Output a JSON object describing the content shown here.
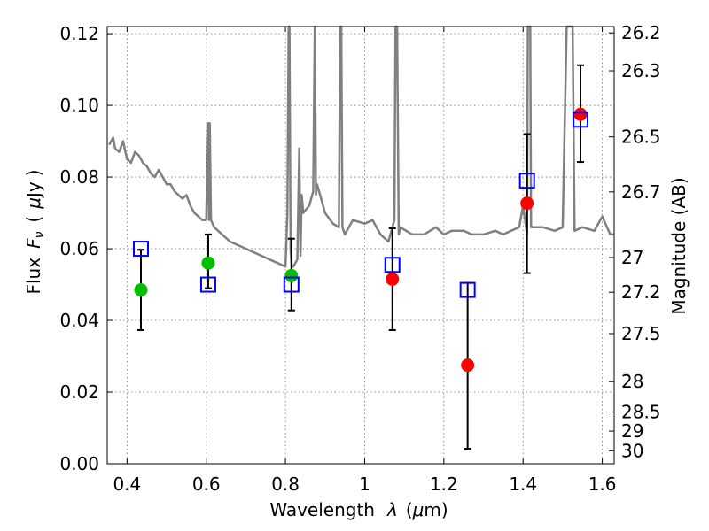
{
  "chart_data": {
    "type": "scatter",
    "xlabel": "Wavelength",
    "xlabel_symbol": "λ",
    "xlabel_unit_open": "(",
    "xlabel_unit_mu": "μ",
    "xlabel_unit_rest": "m)",
    "ylabel": "Flux",
    "ylabel_symbol": "F",
    "ylabel_sub": "ν",
    "ylabel_unit_open": "(",
    "ylabel_unit_mu": "μ",
    "ylabel_unit_rest": "Jy",
    "ylabel_unit_close": ")",
    "y2label": "Magnitude (AB)",
    "xlim": [
      0.35,
      1.63
    ],
    "ylim": [
      0.0,
      0.122
    ],
    "grid": true,
    "x_ticks": [
      {
        "value": 0.4,
        "label": "0.4"
      },
      {
        "value": 0.6,
        "label": "0.6"
      },
      {
        "value": 0.8,
        "label": "0.8"
      },
      {
        "value": 1.0,
        "label": "1"
      },
      {
        "value": 1.2,
        "label": "1.2"
      },
      {
        "value": 1.4,
        "label": "1.4"
      },
      {
        "value": 1.6,
        "label": "1.6"
      }
    ],
    "y_ticks": [
      {
        "value": 0.0,
        "label": "0.00"
      },
      {
        "value": 0.02,
        "label": "0.02"
      },
      {
        "value": 0.04,
        "label": "0.04"
      },
      {
        "value": 0.06,
        "label": "0.06"
      },
      {
        "value": 0.08,
        "label": "0.08"
      },
      {
        "value": 0.1,
        "label": "0.10"
      },
      {
        "value": 0.12,
        "label": "0.12"
      }
    ],
    "mag_ticks": [
      {
        "value": 26.2,
        "label": "26.2"
      },
      {
        "value": 26.3,
        "label": "26.3"
      },
      {
        "value": 26.5,
        "label": "26.5"
      },
      {
        "value": 26.7,
        "label": "26.7"
      },
      {
        "value": 27.0,
        "label": "27"
      },
      {
        "value": 27.2,
        "label": "27.2"
      },
      {
        "value": 27.5,
        "label": "27.5"
      },
      {
        "value": 28.0,
        "label": "28"
      },
      {
        "value": 28.5,
        "label": "28.5"
      },
      {
        "value": 29.0,
        "label": "29"
      },
      {
        "value": 30.0,
        "label": "30"
      }
    ],
    "colors": {
      "spectrum": "#808080",
      "green_points": "#00bf00",
      "red_points": "#ff0000",
      "model_squares": "#0000ff",
      "error_bars": "#000000"
    },
    "series": [
      {
        "role": "spectrum",
        "x": [
          0.355,
          0.365,
          0.37,
          0.38,
          0.39,
          0.4,
          0.41,
          0.42,
          0.43,
          0.44,
          0.45,
          0.46,
          0.47,
          0.48,
          0.49,
          0.5,
          0.51,
          0.52,
          0.53,
          0.54,
          0.55,
          0.56,
          0.57,
          0.58,
          0.59,
          0.6,
          0.605,
          0.607,
          0.609,
          0.612,
          0.62,
          0.64,
          0.66,
          0.68,
          0.7,
          0.72,
          0.74,
          0.76,
          0.78,
          0.8,
          0.805,
          0.808,
          0.81,
          0.813,
          0.816,
          0.82,
          0.83,
          0.835,
          0.838,
          0.841,
          0.845,
          0.86,
          0.87,
          0.874,
          0.877,
          0.88,
          0.9,
          0.92,
          0.935,
          0.938,
          0.941,
          0.944,
          0.95,
          0.97,
          1.0,
          1.02,
          1.04,
          1.06,
          1.075,
          1.078,
          1.082,
          1.086,
          1.09,
          1.12,
          1.15,
          1.18,
          1.2,
          1.22,
          1.25,
          1.27,
          1.3,
          1.33,
          1.35,
          1.37,
          1.39,
          1.4,
          1.41,
          1.412,
          1.418,
          1.42,
          1.45,
          1.48,
          1.5,
          1.51,
          1.515,
          1.525,
          1.53,
          1.55,
          1.58,
          1.6,
          1.62,
          1.63
        ],
        "y": [
          0.089,
          0.091,
          0.088,
          0.087,
          0.09,
          0.085,
          0.084,
          0.087,
          0.086,
          0.084,
          0.083,
          0.081,
          0.08,
          0.082,
          0.08,
          0.078,
          0.078,
          0.076,
          0.075,
          0.074,
          0.075,
          0.072,
          0.07,
          0.069,
          0.068,
          0.068,
          0.095,
          0.068,
          0.095,
          0.068,
          0.066,
          0.064,
          0.062,
          0.061,
          0.06,
          0.059,
          0.058,
          0.057,
          0.056,
          0.055,
          0.07,
          0.125,
          0.125,
          0.06,
          0.055,
          0.055,
          0.057,
          0.088,
          0.058,
          0.075,
          0.07,
          0.072,
          0.076,
          0.13,
          0.075,
          0.078,
          0.07,
          0.067,
          0.066,
          0.13,
          0.13,
          0.066,
          0.064,
          0.068,
          0.067,
          0.068,
          0.064,
          0.062,
          0.068,
          0.13,
          0.13,
          0.064,
          0.066,
          0.064,
          0.064,
          0.066,
          0.064,
          0.065,
          0.065,
          0.064,
          0.064,
          0.065,
          0.064,
          0.065,
          0.066,
          0.072,
          0.064,
          0.13,
          0.13,
          0.066,
          0.066,
          0.065,
          0.066,
          0.13,
          0.13,
          0.13,
          0.065,
          0.066,
          0.065,
          0.069,
          0.064,
          0.064
        ]
      },
      {
        "role": "observed-green",
        "points": [
          {
            "x": 0.435,
            "y": 0.0485,
            "err_lo": 0.0373,
            "err_hi": 0.0597
          },
          {
            "x": 0.605,
            "y": 0.056,
            "err_lo": 0.049,
            "err_hi": 0.064
          },
          {
            "x": 0.815,
            "y": 0.0525,
            "err_lo": 0.0428,
            "err_hi": 0.0628
          }
        ]
      },
      {
        "role": "observed-red",
        "points": [
          {
            "x": 1.07,
            "y": 0.0515,
            "err_lo": 0.0373,
            "err_hi": 0.0657
          },
          {
            "x": 1.26,
            "y": 0.0275,
            "err_lo": 0.0042,
            "err_hi": 0.0505
          },
          {
            "x": 1.41,
            "y": 0.0727,
            "err_lo": 0.0532,
            "err_hi": 0.092
          },
          {
            "x": 1.545,
            "y": 0.0975,
            "err_lo": 0.0842,
            "err_hi": 0.1112
          }
        ]
      },
      {
        "role": "model-squares",
        "points": [
          {
            "x": 0.435,
            "y": 0.06
          },
          {
            "x": 0.605,
            "y": 0.05
          },
          {
            "x": 0.815,
            "y": 0.05
          },
          {
            "x": 1.07,
            "y": 0.0555
          },
          {
            "x": 1.26,
            "y": 0.0485
          },
          {
            "x": 1.41,
            "y": 0.079
          },
          {
            "x": 1.545,
            "y": 0.096
          }
        ]
      }
    ]
  }
}
